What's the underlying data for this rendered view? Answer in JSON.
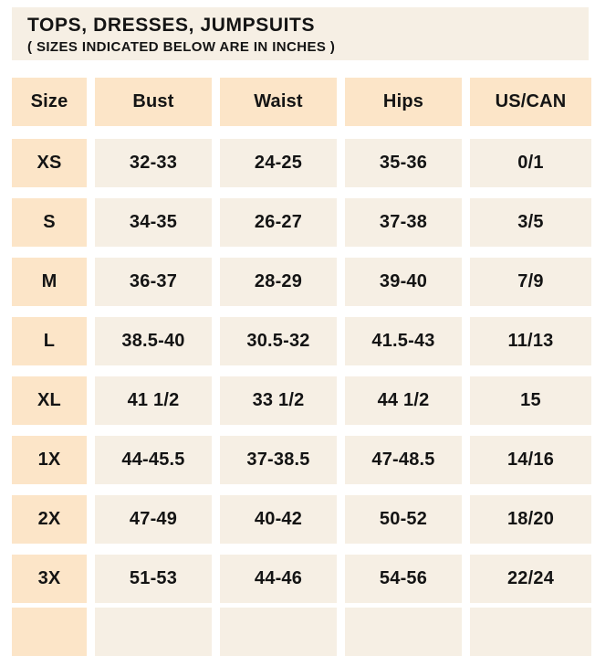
{
  "title_block": {
    "title": "TOPS, DRESSES, JUMPSUITS",
    "subtitle": "( SIZES INDICATED BELOW ARE IN INCHES )"
  },
  "chart_data": {
    "type": "table",
    "title": "TOPS, DRESSES, JUMPSUITS",
    "subtitle": "( SIZES INDICATED BELOW ARE IN INCHES )",
    "columns": [
      "Size",
      "Bust",
      "Waist",
      "Hips",
      "US/CAN"
    ],
    "rows": [
      {
        "size": "XS",
        "bust": "32-33",
        "waist": "24-25",
        "hips": "35-36",
        "us_can": "0/1"
      },
      {
        "size": "S",
        "bust": "34-35",
        "waist": "26-27",
        "hips": "37-38",
        "us_can": "3/5"
      },
      {
        "size": "M",
        "bust": "36-37",
        "waist": "28-29",
        "hips": "39-40",
        "us_can": "7/9"
      },
      {
        "size": "L",
        "bust": "38.5-40",
        "waist": "30.5-32",
        "hips": "41.5-43",
        "us_can": "11/13"
      },
      {
        "size": "XL",
        "bust": "41 1/2",
        "waist": "33 1/2",
        "hips": "44 1/2",
        "us_can": "15"
      },
      {
        "size": "1X",
        "bust": "44-45.5",
        "waist": "37-38.5",
        "hips": "47-48.5",
        "us_can": "14/16"
      },
      {
        "size": "2X",
        "bust": "47-49",
        "waist": "40-42",
        "hips": "50-52",
        "us_can": "18/20"
      },
      {
        "size": "3X",
        "bust": "51-53",
        "waist": "44-46",
        "hips": "54-56",
        "us_can": "22/24"
      }
    ]
  },
  "colors": {
    "header_bg": "#FCE5C8",
    "size_column_bg": "#FCE5C8",
    "cell_bg": "#F6EFE4",
    "title_block_bg": "#F6EFE4",
    "page_bg": "#FFFFFF",
    "text": "#141414"
  }
}
